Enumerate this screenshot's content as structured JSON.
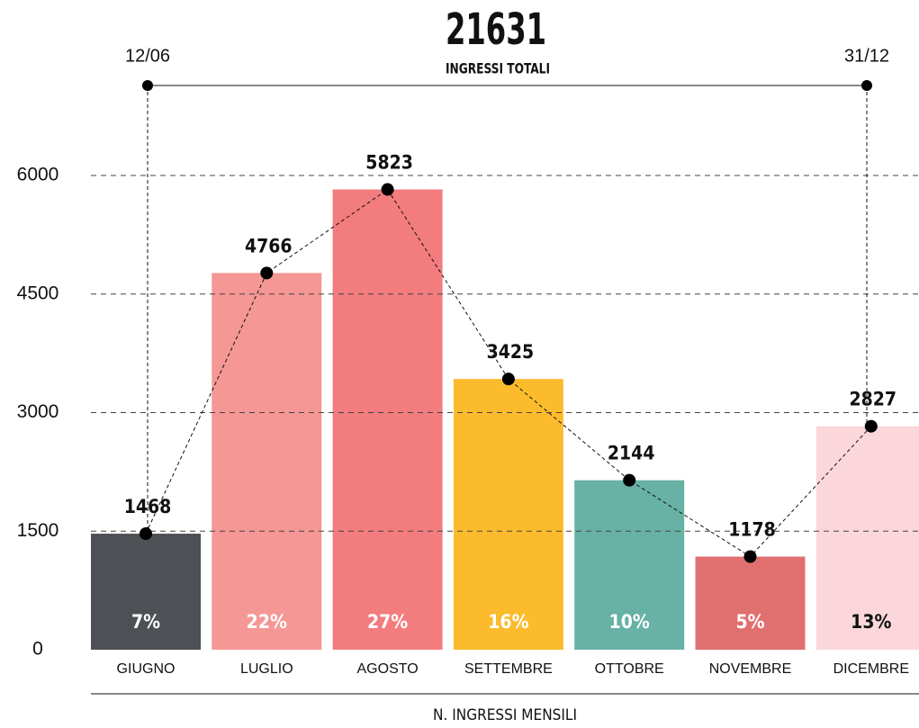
{
  "chart_data": {
    "type": "bar",
    "title": "21631",
    "subtitle": "INGRESSI TOTALI",
    "start_date": "12/06",
    "end_date": "31/12",
    "x_label": "N. INGRESSI MENSILI",
    "categories": [
      "GIUGNO",
      "LUGLIO",
      "AGOSTO",
      "SETTEMBRE",
      "OTTOBRE",
      "NOVEMBRE",
      "DICEMBRE"
    ],
    "values": [
      1468,
      4766,
      5823,
      3425,
      2144,
      1178,
      2827
    ],
    "share_labels": [
      "7%",
      "22%",
      "27%",
      "16%",
      "10%",
      "5%",
      "13%"
    ],
    "colors": [
      "#4d5054",
      "#f49795",
      "#f27c7e",
      "#fbbb2c",
      "#67b1a5",
      "#e07070",
      "#fbd7dc"
    ],
    "ylim": [
      0,
      6000
    ],
    "yticks": [
      0,
      1500,
      3000,
      4500,
      6000
    ],
    "grid": true
  }
}
